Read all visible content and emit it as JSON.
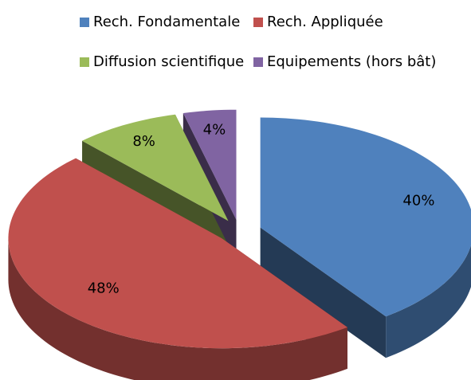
{
  "chart_data": {
    "type": "pie",
    "categories": [
      "Rech. Fondamentale",
      "Rech. Appliquée",
      "Diffusion scientifique",
      "Equipements (hors bât)"
    ],
    "values": [
      40,
      48,
      8,
      4
    ],
    "value_labels": [
      "40%",
      "48%",
      "8%",
      "4%"
    ],
    "colors": [
      "#4f81bd",
      "#c0504d",
      "#9bbb59",
      "#8064a2"
    ],
    "legend": "top"
  }
}
